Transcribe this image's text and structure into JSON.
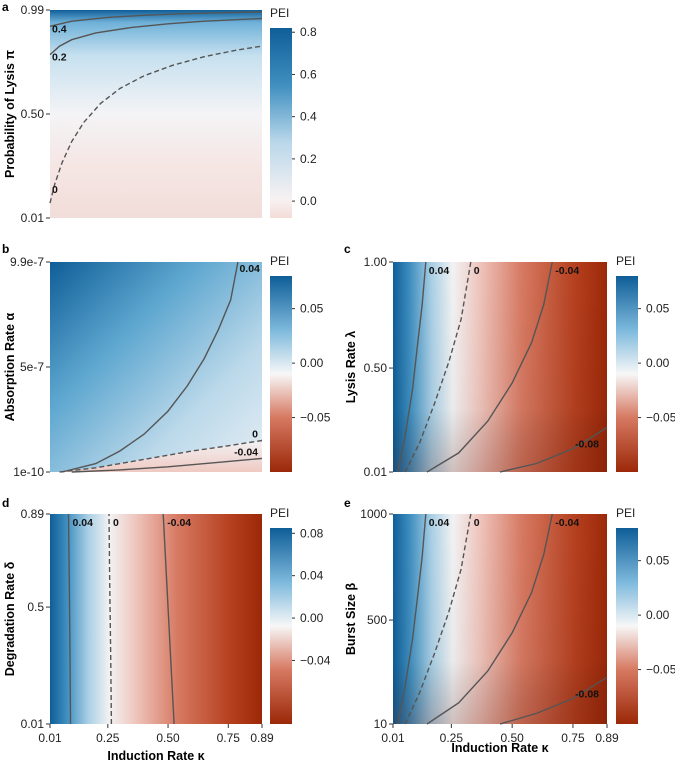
{
  "colors": {
    "neg_dark": "#9b2808",
    "neg_mid": "#d45c45",
    "neg_light": "#f7e8e6",
    "zero": "#f7f7f7",
    "pos_light": "#bcd9ea",
    "pos_mid": "#5aa7d0",
    "pos_dark": "#0f5e98",
    "contour": "#555555"
  },
  "chart_data": [
    {
      "id": "a",
      "panel_label": "a",
      "type": "heatmap",
      "xlabel": "",
      "ylabel": "Probability of Lysis π",
      "xlim": [
        0.01,
        0.89
      ],
      "ylim": [
        0.01,
        0.99
      ],
      "x_ticks": [],
      "y_ticks": [
        {
          "value": 0.99,
          "label": "0.99"
        },
        {
          "value": 0.5,
          "label": "0.50"
        },
        {
          "value": 0.01,
          "label": "0.01"
        }
      ],
      "legend": {
        "title": "PEI",
        "range": [
          -0.08,
          0.82
        ],
        "ticks": [
          {
            "value": 0.8,
            "label": "0.8"
          },
          {
            "value": 0.6,
            "label": "0.6"
          },
          {
            "value": 0.4,
            "label": "0.4"
          },
          {
            "value": 0.2,
            "label": "0.2"
          },
          {
            "value": 0.0,
            "label": "0.0"
          }
        ]
      },
      "contours": [
        {
          "level_label": "0.4",
          "dashed": false,
          "points": [
            [
              0.01,
              0.913
            ],
            [
              0.1,
              0.937
            ],
            [
              0.25,
              0.955
            ],
            [
              0.4,
              0.965
            ],
            [
              0.55,
              0.972
            ],
            [
              0.7,
              0.977
            ],
            [
              0.89,
              0.981
            ]
          ]
        },
        {
          "level_label": "0.2",
          "dashed": false,
          "points": [
            [
              0.01,
              0.78
            ],
            [
              0.05,
              0.82
            ],
            [
              0.1,
              0.85
            ],
            [
              0.2,
              0.882
            ],
            [
              0.35,
              0.908
            ],
            [
              0.5,
              0.925
            ],
            [
              0.65,
              0.937
            ],
            [
              0.89,
              0.95
            ]
          ]
        },
        {
          "level_label": "0",
          "dashed": true,
          "points": [
            [
              0.01,
              0.08
            ],
            [
              0.03,
              0.17
            ],
            [
              0.06,
              0.27
            ],
            [
              0.1,
              0.37
            ],
            [
              0.15,
              0.46
            ],
            [
              0.22,
              0.55
            ],
            [
              0.3,
              0.62
            ],
            [
              0.4,
              0.68
            ],
            [
              0.52,
              0.73
            ],
            [
              0.65,
              0.77
            ],
            [
              0.78,
              0.8
            ],
            [
              0.89,
              0.82
            ]
          ]
        }
      ]
    },
    {
      "id": "b",
      "panel_label": "b",
      "type": "heatmap",
      "xlabel": "",
      "ylabel": "Absorption Rate α",
      "xlim": [
        0.01,
        0.89
      ],
      "ylim": [
        0,
        1
      ],
      "x_ticks": [],
      "y_ticks": [
        {
          "value": 1.0,
          "label": "9.9e-7"
        },
        {
          "value": 0.5,
          "label": "5e-7"
        },
        {
          "value": 0.0,
          "label": "1e-10"
        }
      ],
      "legend": {
        "title": "PEI",
        "range": [
          -0.1,
          0.08
        ],
        "ticks": [
          {
            "value": 0.05,
            "label": "0.05"
          },
          {
            "value": 0.0,
            "label": "0.00"
          },
          {
            "value": -0.05,
            "label": "−0.05"
          }
        ]
      },
      "contours": [
        {
          "level_label": "0.04",
          "dashed": false,
          "points": [
            [
              0.06,
              0.0
            ],
            [
              0.2,
              0.04
            ],
            [
              0.3,
              0.1
            ],
            [
              0.4,
              0.18
            ],
            [
              0.5,
              0.29
            ],
            [
              0.58,
              0.41
            ],
            [
              0.65,
              0.54
            ],
            [
              0.71,
              0.68
            ],
            [
              0.76,
              0.82
            ],
            [
              0.79,
              1.0
            ]
          ]
        },
        {
          "level_label": "0",
          "dashed": true,
          "points": [
            [
              0.05,
              0.0
            ],
            [
              0.2,
              0.02
            ],
            [
              0.4,
              0.06
            ],
            [
              0.6,
              0.1
            ],
            [
              0.75,
              0.125
            ],
            [
              0.89,
              0.15
            ]
          ]
        },
        {
          "level_label": "-0.04",
          "dashed": false,
          "points": [
            [
              0.1,
              0.0
            ],
            [
              0.3,
              0.01
            ],
            [
              0.5,
              0.025
            ],
            [
              0.7,
              0.045
            ],
            [
              0.89,
              0.065
            ]
          ]
        }
      ]
    },
    {
      "id": "c",
      "panel_label": "c",
      "type": "heatmap",
      "xlabel": "",
      "ylabel": "Lysis Rate λ",
      "xlim": [
        0.01,
        0.89
      ],
      "ylim": [
        0.01,
        1.0
      ],
      "x_ticks": [],
      "y_ticks": [
        {
          "value": 1.0,
          "label": "1.00"
        },
        {
          "value": 0.5,
          "label": "0.50"
        },
        {
          "value": 0.01,
          "label": "0.01"
        }
      ],
      "legend": {
        "title": "PEI",
        "range": [
          -0.1,
          0.08
        ],
        "ticks": [
          {
            "value": 0.05,
            "label": "0.05"
          },
          {
            "value": 0.0,
            "label": "0.00"
          },
          {
            "value": -0.05,
            "label": "−0.05"
          }
        ]
      },
      "contours": [
        {
          "level_label": "0.04",
          "dashed": false,
          "points": [
            [
              0.03,
              0.01
            ],
            [
              0.06,
              0.18
            ],
            [
              0.09,
              0.4
            ],
            [
              0.11,
              0.6
            ],
            [
              0.13,
              0.8
            ],
            [
              0.145,
              1.0
            ]
          ]
        },
        {
          "level_label": "0",
          "dashed": true,
          "points": [
            [
              0.06,
              0.01
            ],
            [
              0.12,
              0.15
            ],
            [
              0.18,
              0.33
            ],
            [
              0.24,
              0.53
            ],
            [
              0.29,
              0.73
            ],
            [
              0.33,
              1.0
            ]
          ]
        },
        {
          "level_label": "-0.04",
          "dashed": false,
          "points": [
            [
              0.15,
              0.01
            ],
            [
              0.28,
              0.1
            ],
            [
              0.4,
              0.25
            ],
            [
              0.5,
              0.43
            ],
            [
              0.58,
              0.62
            ],
            [
              0.63,
              0.8
            ],
            [
              0.665,
              1.0
            ]
          ]
        },
        {
          "level_label": "-0.08",
          "dashed": false,
          "points": [
            [
              0.45,
              0.01
            ],
            [
              0.6,
              0.05
            ],
            [
              0.75,
              0.12
            ],
            [
              0.89,
              0.22
            ]
          ]
        }
      ]
    },
    {
      "id": "d",
      "panel_label": "d",
      "type": "heatmap",
      "xlabel": "Induction Rate κ",
      "ylabel": "Degradation Rate δ",
      "xlim": [
        0.01,
        0.89
      ],
      "ylim": [
        0.01,
        0.89
      ],
      "x_ticks": [
        {
          "value": 0.01,
          "label": "0.01"
        },
        {
          "value": 0.25,
          "label": "0.25"
        },
        {
          "value": 0.5,
          "label": "0.50"
        },
        {
          "value": 0.75,
          "label": "0.75"
        },
        {
          "value": 0.89,
          "label": "0.89"
        }
      ],
      "y_ticks": [
        {
          "value": 0.89,
          "label": "0.89"
        },
        {
          "value": 0.5,
          "label": "0.5"
        },
        {
          "value": 0.01,
          "label": "0.01"
        }
      ],
      "legend": {
        "title": "PEI",
        "range": [
          -0.1,
          0.085
        ],
        "ticks": [
          {
            "value": 0.08,
            "label": "0.08"
          },
          {
            "value": 0.04,
            "label": "0.04"
          },
          {
            "value": 0.0,
            "label": "0.00"
          },
          {
            "value": -0.04,
            "label": "−0.04"
          }
        ]
      },
      "contours": [
        {
          "level_label": "0.04",
          "dashed": false,
          "points": [
            [
              0.095,
              0.01
            ],
            [
              0.093,
              0.3
            ],
            [
              0.09,
              0.6
            ],
            [
              0.087,
              0.89
            ]
          ]
        },
        {
          "level_label": "0",
          "dashed": true,
          "points": [
            [
              0.265,
              0.01
            ],
            [
              0.262,
              0.3
            ],
            [
              0.258,
              0.6
            ],
            [
              0.255,
              0.89
            ]
          ]
        },
        {
          "level_label": "-0.04",
          "dashed": false,
          "points": [
            [
              0.525,
              0.01
            ],
            [
              0.51,
              0.3
            ],
            [
              0.495,
              0.6
            ],
            [
              0.48,
              0.89
            ]
          ]
        }
      ]
    },
    {
      "id": "e",
      "panel_label": "e",
      "type": "heatmap",
      "xlabel": "Induction Rate κ",
      "ylabel": "Burst Size β",
      "xlim": [
        0.01,
        0.89
      ],
      "ylim": [
        10,
        1000
      ],
      "x_ticks": [
        {
          "value": 0.01,
          "label": "0.01"
        },
        {
          "value": 0.25,
          "label": "0.25"
        },
        {
          "value": 0.5,
          "label": "0.50"
        },
        {
          "value": 0.75,
          "label": "0.75"
        },
        {
          "value": 0.89,
          "label": "0.89"
        }
      ],
      "y_ticks": [
        {
          "value": 1000,
          "label": "1000"
        },
        {
          "value": 500,
          "label": "500"
        },
        {
          "value": 10,
          "label": "10"
        }
      ],
      "legend": {
        "title": "PEI",
        "range": [
          -0.1,
          0.08
        ],
        "ticks": [
          {
            "value": 0.05,
            "label": "0.05"
          },
          {
            "value": 0.0,
            "label": "0.00"
          },
          {
            "value": -0.05,
            "label": "−0.05"
          }
        ]
      },
      "contours": [
        {
          "level_label": "0.04",
          "dashed": false,
          "points": [
            [
              0.03,
              10
            ],
            [
              0.06,
              190
            ],
            [
              0.09,
              410
            ],
            [
              0.11,
              600
            ],
            [
              0.13,
              800
            ],
            [
              0.145,
              1000
            ]
          ]
        },
        {
          "level_label": "0",
          "dashed": true,
          "points": [
            [
              0.06,
              10
            ],
            [
              0.12,
              160
            ],
            [
              0.18,
              340
            ],
            [
              0.24,
              540
            ],
            [
              0.29,
              740
            ],
            [
              0.33,
              1000
            ]
          ]
        },
        {
          "level_label": "-0.04",
          "dashed": false,
          "points": [
            [
              0.15,
              10
            ],
            [
              0.28,
              110
            ],
            [
              0.4,
              260
            ],
            [
              0.5,
              440
            ],
            [
              0.58,
              630
            ],
            [
              0.63,
              810
            ],
            [
              0.665,
              1000
            ]
          ]
        },
        {
          "level_label": "-0.08",
          "dashed": false,
          "points": [
            [
              0.45,
              10
            ],
            [
              0.6,
              60
            ],
            [
              0.75,
              130
            ],
            [
              0.89,
              230
            ]
          ]
        }
      ]
    }
  ]
}
